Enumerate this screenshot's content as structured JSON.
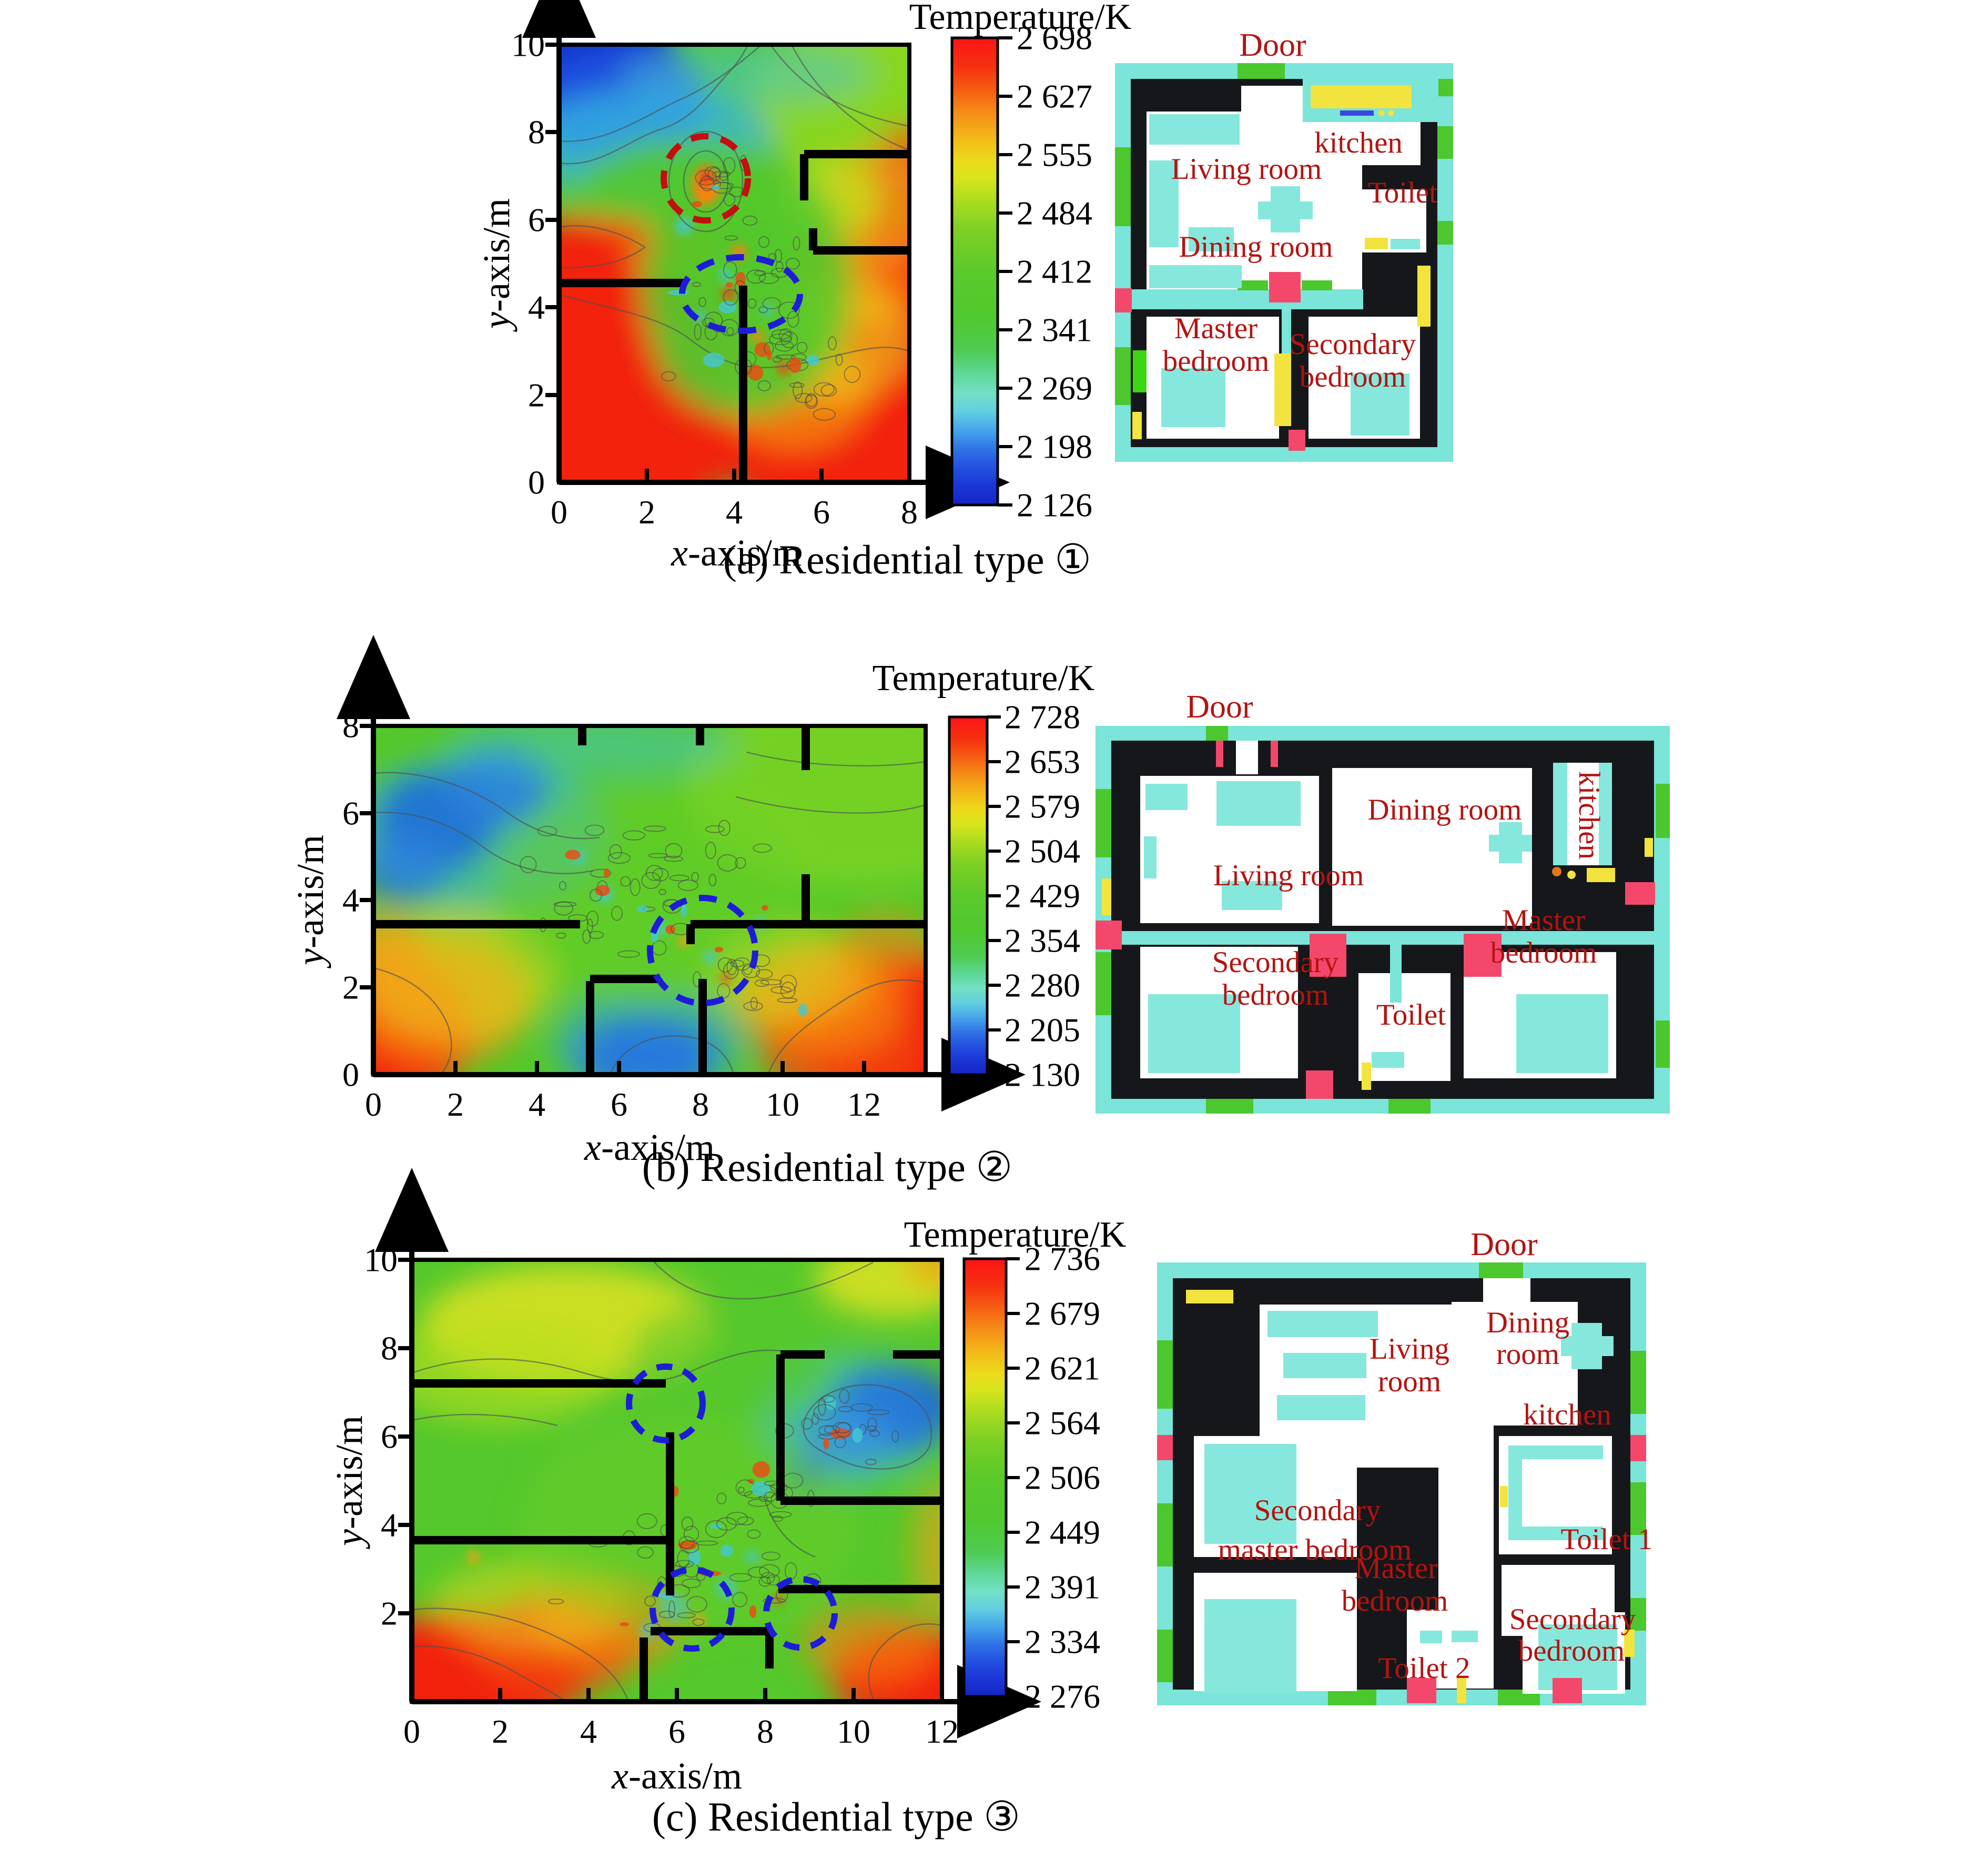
{
  "panels": [
    {
      "caption": "(a) Residential type ①",
      "colorbar": {
        "title": "Temperature/K",
        "ticks": [
          "2 698",
          "2 627",
          "2 555",
          "2 484",
          "2 412",
          "2 341",
          "2 269",
          "2 198",
          "2 126"
        ]
      },
      "axes": {
        "x_var": "x",
        "x_rest": "-axis/m",
        "y_var": "y",
        "y_rest": "-axis/m",
        "x_ticks": [
          "0",
          "2",
          "4",
          "6",
          "8"
        ],
        "y_ticks": [
          "0",
          "2",
          "4",
          "6",
          "8",
          "10"
        ]
      },
      "floorplan": {
        "door": "Door",
        "labels": {
          "kitchen": [
            "kitchen"
          ],
          "living": [
            "Living room"
          ],
          "toilet": [
            "Toilet"
          ],
          "dining": [
            "Dining room"
          ],
          "master": [
            "Master",
            "bedroom"
          ],
          "secondary": [
            "Secondary",
            "bedroom"
          ]
        }
      }
    },
    {
      "caption": "(b) Residential type ②",
      "colorbar": {
        "title": "Temperature/K",
        "ticks": [
          "2 728",
          "2 653",
          "2 579",
          "2 504",
          "2 429",
          "2 354",
          "2 280",
          "2 205",
          "2 130"
        ]
      },
      "axes": {
        "x_var": "x",
        "x_rest": "-axis/m",
        "y_var": "y",
        "y_rest": "-axis/m",
        "x_ticks": [
          "0",
          "2",
          "4",
          "6",
          "8",
          "10",
          "12"
        ],
        "y_ticks": [
          "0",
          "2",
          "4",
          "6",
          "8"
        ]
      },
      "floorplan": {
        "door": "Door",
        "labels": {
          "dining": [
            "Dining room"
          ],
          "kitchen": [
            "kitchen"
          ],
          "living": [
            "Living room"
          ],
          "secondary": [
            "Secondary",
            "bedroom"
          ],
          "toilet": [
            "Toilet"
          ],
          "master": [
            "Master",
            "bedroom"
          ]
        }
      }
    },
    {
      "caption": "(c) Residential type ③",
      "colorbar": {
        "title": "Temperature/K",
        "ticks": [
          "2 736",
          "2 679",
          "2 621",
          "2 564",
          "2 506",
          "2 449",
          "2 391",
          "2 334",
          "2 276"
        ]
      },
      "axes": {
        "x_var": "x",
        "x_rest": "-axis/m",
        "y_var": "y",
        "y_rest": "-axis/m",
        "x_ticks": [
          "0",
          "2",
          "4",
          "6",
          "8",
          "10",
          "12"
        ],
        "y_ticks": [
          "2",
          "4",
          "6",
          "8",
          "10"
        ]
      },
      "floorplan": {
        "door": "Door",
        "labels": {
          "dining": [
            "Dining",
            "room"
          ],
          "living": [
            "Living",
            "room"
          ],
          "kitchen": [
            "kitchen"
          ],
          "secondary_master": [
            "Secondary",
            "master bedroom"
          ],
          "toilet1": [
            "Toilet 1"
          ],
          "master": [
            "Master",
            "bedroom"
          ],
          "toilet2": [
            "Toilet 2"
          ],
          "secondary": [
            "Secondary",
            "bedroom"
          ]
        }
      }
    }
  ],
  "colors": {
    "room_label_red": "#b31310",
    "annotation_red": "#c40f0f",
    "annotation_blue": "#1d1dd8",
    "plan_cyan": "#7ae5d8",
    "plan_green": "#4cc72e",
    "plan_yellow": "#f2e33e",
    "plan_pink": "#f3486b",
    "wall_black": "#16181a",
    "field_hot": "#f2210f",
    "field_mid": "#54c82b",
    "field_cold": "#0b2cc2"
  },
  "chart_data": [
    {
      "type": "heatmap",
      "subtype": "filled-contour temperature field",
      "panel": "a",
      "caption": "(a) Residential type ①",
      "title": "Temperature/K",
      "xlabel": "x-axis/m",
      "ylabel": "y-axis/m",
      "xlim": [
        0,
        8
      ],
      "ylim": [
        0,
        10
      ],
      "x_ticks": [
        0,
        2,
        4,
        6,
        8
      ],
      "y_ticks": [
        0,
        2,
        4,
        6,
        8,
        10
      ],
      "colorbar_ticks_K": [
        2698,
        2627,
        2555,
        2484,
        2412,
        2341,
        2269,
        2198,
        2126
      ],
      "temperature_range_K": [
        2126,
        2698
      ],
      "legend_position": "right colorbar",
      "grid": false,
      "field_regions": [
        {
          "area": "top-left corner (x 0-2.5, y 8-10)",
          "approx_T_K": 2160,
          "color": "dark blue"
        },
        {
          "area": "upper-left band (x 0-3.5, y 7-8.5)",
          "approx_T_K": 2300,
          "color": "cyan"
        },
        {
          "area": "left band (x 0-2.9, y 4.6-5.9)",
          "approx_T_K": 2690,
          "color": "red"
        },
        {
          "area": "bottom-left room (x 0-4.2, y 0-4.5)",
          "approx_T_K": 2698,
          "color": "red"
        },
        {
          "area": "bottom-right (x 4.2-8, y 0-5)",
          "approx_T_K": 2660,
          "color": "red-orange"
        },
        {
          "area": "right edge (y 5-7.5)",
          "approx_T_K": 2590,
          "color": "orange"
        },
        {
          "area": "central turbulent plume (x 2.5-6, y 1.5-7)",
          "approx_T_K": 2440,
          "color": "green with speckles"
        },
        {
          "area": "top-right room (x 5.6-8, y 7.5-10)",
          "approx_T_K": 2480,
          "color": "green-yellow"
        }
      ],
      "walls_m": [
        [
          0,
          4.55,
          2.85,
          4.55
        ],
        [
          4.2,
          0,
          4.2,
          4.5
        ],
        [
          5.6,
          7.5,
          8,
          7.5
        ],
        [
          5.6,
          6.45,
          5.6,
          7.5
        ],
        [
          5.8,
          5.3,
          8,
          5.3
        ],
        [
          5.8,
          5.3,
          5.8,
          5.8
        ]
      ],
      "annotations": [
        {
          "shape": "circle",
          "line": "dashed",
          "color": "red",
          "center_m": [
            3.35,
            6.95
          ],
          "radius_m": 0.95
        },
        {
          "shape": "ellipse",
          "line": "dashed",
          "color": "blue",
          "center_m": [
            4.15,
            4.3
          ],
          "rx_m": 1.35,
          "ry_m": 0.85
        }
      ]
    },
    {
      "type": "heatmap",
      "subtype": "filled-contour temperature field",
      "panel": "b",
      "caption": "(b) Residential type ②",
      "title": "Temperature/K",
      "xlabel": "x-axis/m",
      "ylabel": "y-axis/m",
      "xlim": [
        0,
        13.5
      ],
      "ylim": [
        0,
        8
      ],
      "x_ticks": [
        0,
        2,
        4,
        6,
        8,
        10,
        12
      ],
      "y_ticks": [
        0,
        2,
        4,
        6,
        8
      ],
      "colorbar_ticks_K": [
        2728,
        2653,
        2579,
        2504,
        2429,
        2354,
        2280,
        2205,
        2130
      ],
      "temperature_range_K": [
        2130,
        2728
      ],
      "legend_position": "right colorbar",
      "grid": false,
      "field_regions": [
        {
          "area": "top-left patches (x 0-3.5, y 4.5-7.5)",
          "approx_T_K": 2200,
          "color": "blue/cyan"
        },
        {
          "area": "bottom-left corner (x 0-2.5, y 0-3)",
          "approx_T_K": 2700,
          "color": "red with orange fringe"
        },
        {
          "area": "bottom-center pocket (x 5.3-8, y 0-1.3)",
          "approx_T_K": 2180,
          "color": "blue"
        },
        {
          "area": "bottom-right (x 9.5-13.5, y 0-3.2)",
          "approx_T_K": 2728,
          "color": "red"
        },
        {
          "area": "central mixing zone (x 3-10, y 2-6)",
          "approx_T_K": 2430,
          "color": "green with speckles"
        },
        {
          "area": "right half top (x 10-13.5, y 4-7.5)",
          "approx_T_K": 2450,
          "color": "green-teal"
        }
      ],
      "walls_m": [
        [
          0,
          3.45,
          5.05,
          3.45
        ],
        [
          7.75,
          3.45,
          13.5,
          3.45
        ],
        [
          7.75,
          3.0,
          7.75,
          3.45
        ],
        [
          5.3,
          0,
          5.3,
          2.15
        ],
        [
          8.05,
          0,
          8.05,
          2.2
        ],
        [
          5.3,
          2.2,
          7.0,
          2.2
        ],
        [
          5.1,
          7.05,
          5.1,
          7.5
        ],
        [
          7.98,
          7.05,
          7.98,
          7.5
        ],
        [
          10.56,
          6.4,
          10.56,
          7.5
        ],
        [
          10.56,
          3.45,
          10.56,
          4.6
        ]
      ],
      "annotations": [
        {
          "shape": "circle",
          "line": "dashed",
          "color": "blue",
          "center_m": [
            8.05,
            2.85
          ],
          "radius_m": 1.25
        }
      ]
    },
    {
      "type": "heatmap",
      "subtype": "filled-contour temperature field",
      "panel": "c",
      "caption": "(c) Residential type ③",
      "title": "Temperature/K",
      "xlabel": "x-axis/m",
      "ylabel": "y-axis/m",
      "xlim": [
        0,
        12
      ],
      "ylim": [
        0,
        10
      ],
      "x_ticks": [
        0,
        2,
        4,
        6,
        8,
        10,
        12
      ],
      "y_ticks": [
        2,
        4,
        6,
        8,
        10
      ],
      "colorbar_ticks_K": [
        2736,
        2679,
        2621,
        2564,
        2506,
        2449,
        2391,
        2334,
        2276
      ],
      "temperature_range_K": [
        2276,
        2736
      ],
      "legend_position": "right colorbar",
      "grid": false,
      "field_regions": [
        {
          "area": "top-left (x 2-6, y 8-10)",
          "approx_T_K": 2600,
          "color": "yellow-green"
        },
        {
          "area": "top-right corner (x 10.5-12, y 9.3-10)",
          "approx_T_K": 2630,
          "color": "yellow-orange"
        },
        {
          "area": "bottom-left (x 0-5, y 0-2.5)",
          "approx_T_K": 2730,
          "color": "red"
        },
        {
          "area": "bottom-right (x 10-12, y 0-1.8)",
          "approx_T_K": 2720,
          "color": "red"
        },
        {
          "area": "upper-right room pocket (x 9.5-11.8, y 4.8-7.3)",
          "approx_T_K": 2310,
          "color": "blue/cyan"
        },
        {
          "area": "central band (x 3-10, y 1.5-6)",
          "approx_T_K": 2480,
          "color": "green with speckles"
        },
        {
          "area": "right edge (x 11.5-12, y 2.5-6)",
          "approx_T_K": 2600,
          "color": "orange"
        }
      ],
      "walls_m": [
        [
          0,
          7.2,
          5.75,
          7.2
        ],
        [
          5.85,
          2.4,
          5.85,
          6.1
        ],
        [
          0,
          3.65,
          5.85,
          3.65
        ],
        [
          8.35,
          4.55,
          8.35,
          7.85
        ],
        [
          8.35,
          4.55,
          12,
          4.55
        ],
        [
          8.35,
          7.85,
          9.35,
          7.85
        ],
        [
          10.9,
          7.85,
          12,
          7.85
        ],
        [
          8.3,
          2.55,
          12,
          2.55
        ],
        [
          5.25,
          0,
          5.25,
          1.45
        ],
        [
          5.4,
          1.6,
          8.1,
          1.6
        ],
        [
          8.1,
          0.75,
          8.1,
          1.6
        ]
      ],
      "annotations": [
        {
          "shape": "circle",
          "line": "dashed",
          "color": "blue",
          "center_m": [
            5.75,
            6.75
          ],
          "radius_m": 0.8
        },
        {
          "shape": "circle",
          "line": "dashed",
          "color": "blue",
          "center_m": [
            6.35,
            2.1
          ],
          "radius_m": 0.9
        },
        {
          "shape": "circle",
          "line": "dashed",
          "color": "blue",
          "center_m": [
            8.8,
            2.0
          ],
          "radius_m": 0.8
        }
      ]
    }
  ]
}
